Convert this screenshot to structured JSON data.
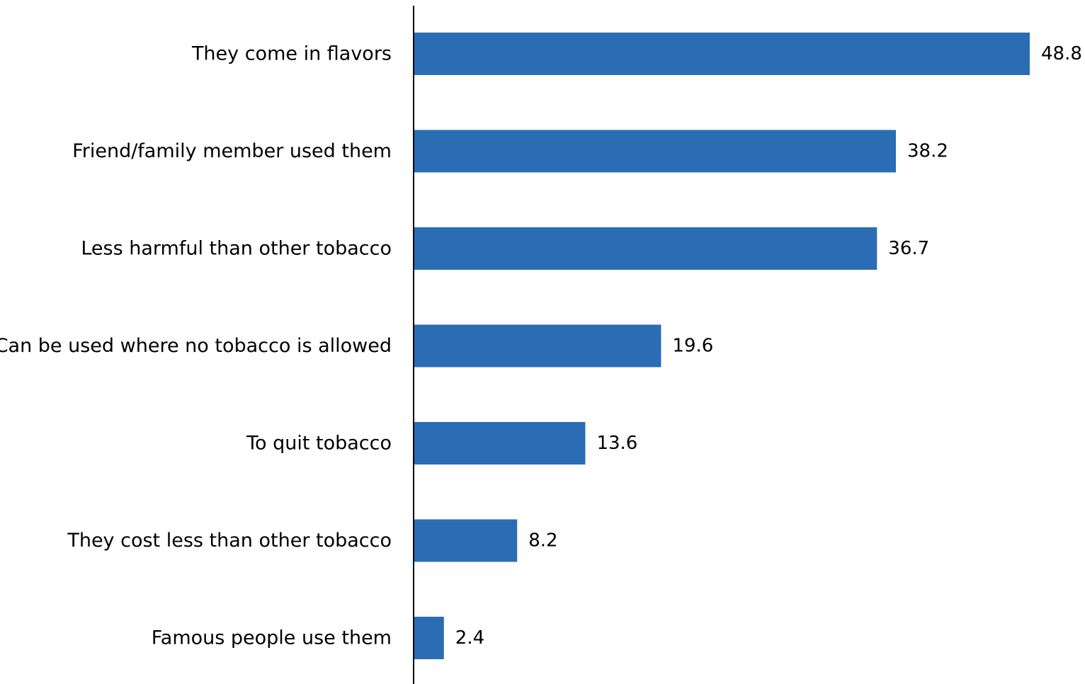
{
  "chart_data": {
    "type": "bar",
    "orientation": "horizontal",
    "title": "",
    "xlabel": "",
    "ylabel": "",
    "categories": [
      "They come in flavors",
      "Friend/family member used them",
      "Less harmful than other tobacco",
      "Can be used where no tobacco is allowed",
      "To quit tobacco",
      "They cost less than other tobacco",
      "Famous people use them"
    ],
    "values": [
      48.8,
      38.2,
      36.7,
      19.6,
      13.6,
      8.2,
      2.4
    ],
    "value_labels": [
      "48.8",
      "38.2",
      "36.7",
      "19.6",
      "13.6",
      "8.2",
      "2.4"
    ],
    "xlim": [
      0,
      48.8
    ],
    "grid": false,
    "legend": "none",
    "bar_color": "#2a6db5"
  }
}
